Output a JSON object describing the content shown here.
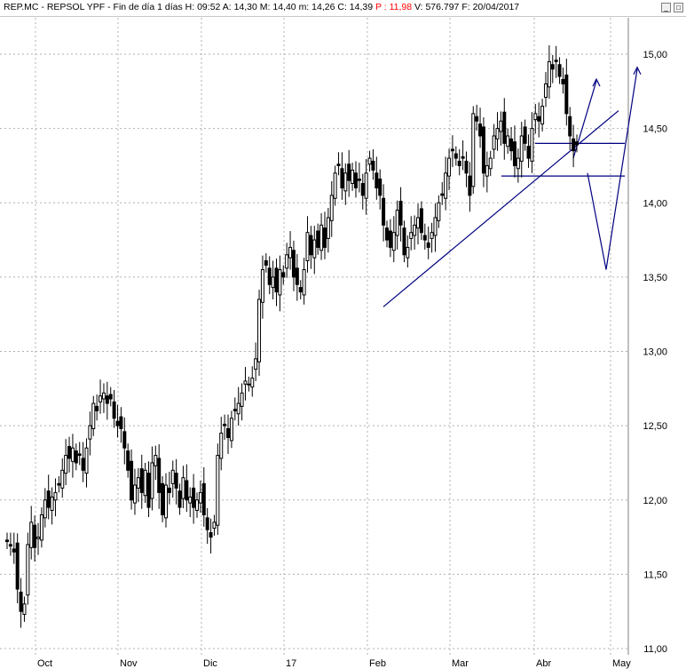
{
  "title_bar": {
    "symbol": "REP.MC - REPSOL YPF",
    "period": "Fin de día 1 días",
    "high_label": "H:",
    "high": "09:52",
    "open_label": "A:",
    "open": "14,30",
    "max_label": "M:",
    "max": "14,40",
    "min_label": "m:",
    "min": "14,26",
    "close_label": "C:",
    "close": "14,39",
    "per_label": "P :",
    "per": "11,98",
    "vol_label": "V:",
    "vol": "576.797",
    "date_label": "F:",
    "date": "20/04/2017",
    "minimize_icon": "minimize-icon",
    "maximize_icon": "maximize-icon"
  },
  "chart_data": {
    "type": "candlestick",
    "title": "",
    "xlabel": "",
    "ylabel": "",
    "ylim": [
      11.0,
      15.2
    ],
    "y_ticks": [
      "11,00",
      "11,50",
      "12,00",
      "12,50",
      "13,00",
      "13,50",
      "14,00",
      "14,50",
      "15,00"
    ],
    "x_ticks": [
      "Oct",
      "Nov",
      "Dic",
      "17",
      "Feb",
      "Mar",
      "Abr",
      "May"
    ],
    "grid": true,
    "colors": {
      "candle": "#000000",
      "trendline": "#000080",
      "grid": "#b0b0b0"
    },
    "closes": [
      11.72,
      11.69,
      11.65,
      11.4,
      11.25,
      11.3,
      11.7,
      11.85,
      11.68,
      11.75,
      11.9,
      12.0,
      11.95,
      12.02,
      12.05,
      12.1,
      12.2,
      12.3,
      12.28,
      12.35,
      12.25,
      12.3,
      12.2,
      12.35,
      12.5,
      12.65,
      12.6,
      12.7,
      12.72,
      12.65,
      12.68,
      12.55,
      12.5,
      12.48,
      12.35,
      12.2,
      12.0,
      12.1,
      12.15,
      12.05,
      12.2,
      11.95,
      12.25,
      12.3,
      12.05,
      11.9,
      12.1,
      12.05,
      12.2,
      12.08,
      11.95,
      12.15,
      12.0,
      12.02,
      11.95,
      12.0,
      12.05,
      11.9,
      11.8,
      11.75,
      11.85,
      12.3,
      12.45,
      12.5,
      12.42,
      12.55,
      12.6,
      12.65,
      12.72,
      12.8,
      12.78,
      12.82,
      12.95,
      13.35,
      13.55,
      13.58,
      13.45,
      13.5,
      13.4,
      13.55,
      13.5,
      13.65,
      13.7,
      13.5,
      13.45,
      13.4,
      13.55,
      13.8,
      13.65,
      13.75,
      13.7,
      13.85,
      13.7,
      13.9,
      14.05,
      14.2,
      14.25,
      14.1,
      14.2,
      14.15,
      14.22,
      14.1,
      14.15,
      14.05,
      14.2,
      14.3,
      14.22,
      14.1,
      14.05,
      13.85,
      13.75,
      13.7,
      13.8,
      13.95,
      13.85,
      13.65,
      13.7,
      13.8,
      13.85,
      13.9,
      13.8,
      13.75,
      13.7,
      13.8,
      13.9,
      14.0,
      14.05,
      14.2,
      14.3,
      14.35,
      14.3,
      14.25,
      14.3,
      14.2,
      14.05,
      14.6,
      14.55,
      14.45,
      14.2,
      14.25,
      14.3,
      14.45,
      14.5,
      14.55,
      14.4,
      14.45,
      14.35,
      14.25,
      14.3,
      14.45,
      14.4,
      14.3,
      14.5,
      14.6,
      14.55,
      14.65,
      14.8,
      14.95,
      14.9,
      14.95,
      14.85,
      14.8,
      14.6,
      14.45,
      14.35,
      14.39
    ]
  }
}
